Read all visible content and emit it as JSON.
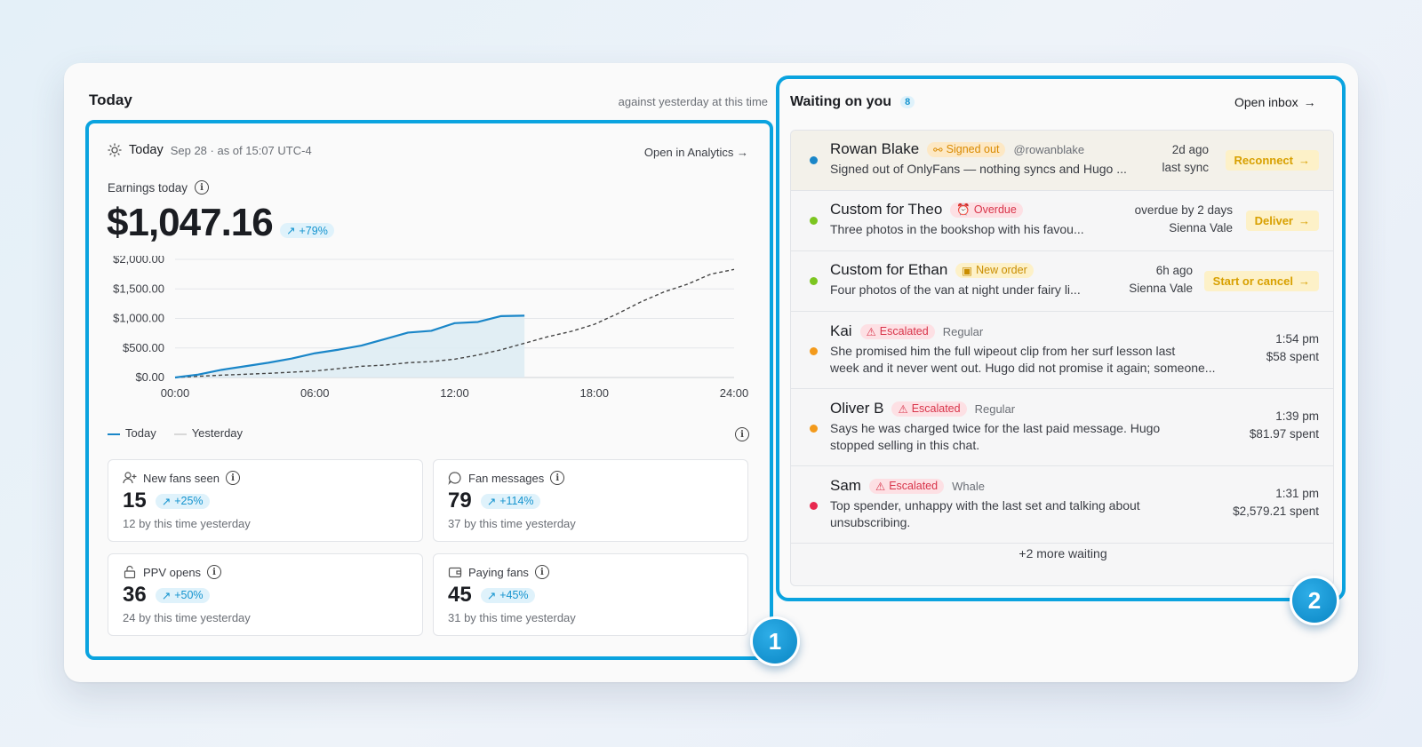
{
  "today": {
    "title": "Today",
    "against": "against yesterday at this time",
    "header_label": "Today",
    "header_date": "Sep 28 · as of 15:07 UTC-4",
    "open_analytics": "Open in Analytics",
    "earnings_label": "Earnings today",
    "earnings_value": "$1,047.16",
    "earnings_change": "+79%",
    "legend_today": "Today",
    "legend_yesterday": "Yesterday",
    "stats": [
      {
        "label": "New fans seen",
        "value": "15",
        "change": "+25%",
        "sub": "12 by this time yesterday",
        "icon": "user-plus-icon"
      },
      {
        "label": "Fan messages",
        "value": "79",
        "change": "+114%",
        "sub": "37 by this time yesterday",
        "icon": "chat-bubble-icon"
      },
      {
        "label": "PPV opens",
        "value": "36",
        "change": "+50%",
        "sub": "24 by this time yesterday",
        "icon": "unlock-icon"
      },
      {
        "label": "Paying fans",
        "value": "45",
        "change": "+45%",
        "sub": "31 by this time yesterday",
        "icon": "wallet-icon"
      }
    ]
  },
  "chart_data": {
    "type": "line",
    "x_ticks": [
      "00:00",
      "06:00",
      "12:00",
      "18:00",
      "24:00"
    ],
    "y_ticks": [
      "$2,000.00",
      "$1,500.00",
      "$1,000.00",
      "$500.00",
      "$0.00"
    ],
    "ylim": [
      0,
      2000
    ],
    "xlim": [
      0,
      24
    ],
    "series": [
      {
        "name": "Today",
        "color": "#1a86c8",
        "x": [
          0,
          1,
          2,
          3,
          4,
          5,
          6,
          7,
          8,
          9,
          10,
          11,
          12,
          13,
          14,
          15
        ],
        "y": [
          0,
          50,
          130,
          190,
          250,
          320,
          410,
          470,
          540,
          650,
          760,
          790,
          920,
          940,
          1040,
          1047
        ]
      },
      {
        "name": "Yesterday",
        "color": "#444444",
        "x": [
          0,
          2,
          4,
          6,
          7,
          8,
          9,
          10,
          11,
          12,
          13,
          14,
          15,
          16,
          17,
          18,
          19,
          20,
          21,
          22,
          23,
          24
        ],
        "y": [
          0,
          40,
          70,
          110,
          150,
          190,
          210,
          250,
          270,
          310,
          380,
          470,
          580,
          690,
          780,
          900,
          1080,
          1280,
          1450,
          1580,
          1750,
          1830
        ]
      }
    ]
  },
  "waiting": {
    "title": "Waiting on you",
    "count": "8",
    "open_inbox": "Open inbox",
    "items": [
      {
        "name": "Rowan Blake",
        "tag": "Signed out",
        "meta": "@rowanblake",
        "msg": "Signed out of OnlyFans — nothing syncs and Hugo ...",
        "r1": "2d ago",
        "r2": "last sync",
        "action": "Reconnect",
        "dot": "#1a86c8"
      },
      {
        "name": "Custom for Theo",
        "tag": "Overdue",
        "meta": "",
        "msg": "Three photos in the bookshop with his favou...",
        "r1": "overdue by 2 days",
        "r2": "Sienna Vale",
        "action": "Deliver",
        "dot": "#7cc520"
      },
      {
        "name": "Custom for Ethan",
        "tag": "New order",
        "meta": "",
        "msg": "Four photos of the van at night under fairy li...",
        "r1": "6h ago",
        "r2": "Sienna Vale",
        "action": "Start or cancel",
        "dot": "#7cc520"
      },
      {
        "name": "Kai",
        "tag": "Escalated",
        "meta": "Regular",
        "msg1": "She promised him the full wipeout clip from her surf lesson last",
        "msg2": "week and it never went out. Hugo did not promise it again; someone...",
        "r1": "1:54 pm",
        "r2": "$58 spent",
        "dot": "#f39a1c"
      },
      {
        "name": "Oliver B",
        "tag": "Escalated",
        "meta": "Regular",
        "msg1": "Says he was charged twice for the last paid message. Hugo",
        "msg2": "stopped selling in this chat.",
        "r1": "1:39 pm",
        "r2": "$81.97 spent",
        "dot": "#f39a1c"
      },
      {
        "name": "Sam",
        "tag": "Escalated",
        "meta": "Whale",
        "msg1": "Top spender, unhappy with the last set and talking about",
        "msg2": "unsubscribing.",
        "r1": "1:31 pm",
        "r2": "$2,579.21 spent",
        "dot": "#e8284f"
      }
    ],
    "more": "+2 more waiting"
  },
  "callouts": {
    "one": "1",
    "two": "2"
  }
}
